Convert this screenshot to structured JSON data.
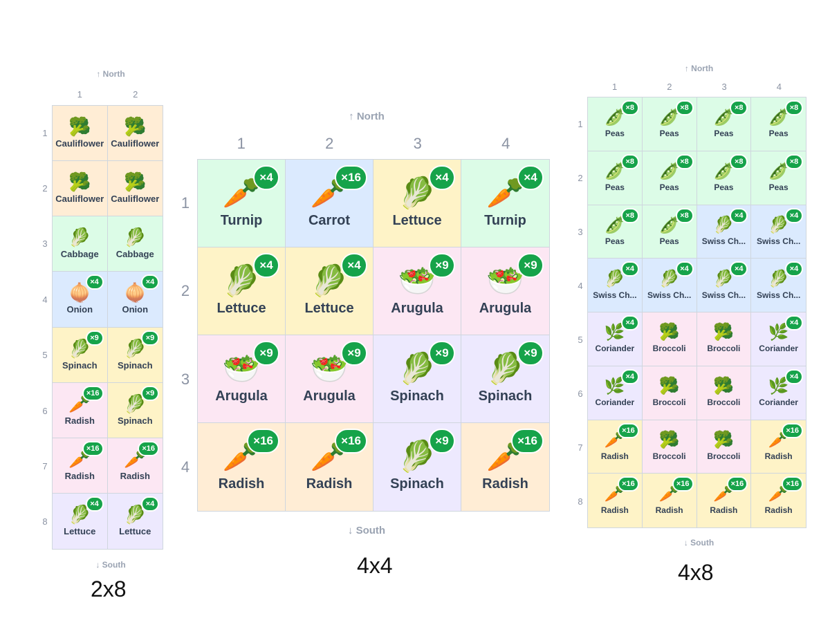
{
  "palette": {
    "green": "#dcfce7",
    "blue": "#dbeafe",
    "yellow": "#fef3c7",
    "pink": "#fce7f3",
    "orange": "#ffedd5",
    "lavender": "#ede9fe",
    "badge": "#16a34a"
  },
  "plans": [
    {
      "id": "a",
      "caption": "2x8",
      "north": "↑ North",
      "south": "↓ South",
      "cols": [
        "1",
        "2"
      ],
      "rows": [
        "1",
        "2",
        "3",
        "4",
        "5",
        "6",
        "7",
        "8"
      ],
      "cells": [
        [
          {
            "plant": "Cauliflower",
            "icon": "🥦",
            "count": "",
            "color": "orange"
          },
          {
            "plant": "Cauliflower",
            "icon": "🥦",
            "count": "",
            "color": "orange"
          }
        ],
        [
          {
            "plant": "Cauliflower",
            "icon": "🥦",
            "count": "",
            "color": "orange"
          },
          {
            "plant": "Cauliflower",
            "icon": "🥦",
            "count": "",
            "color": "orange"
          }
        ],
        [
          {
            "plant": "Cabbage",
            "icon": "🥬",
            "count": "",
            "color": "green"
          },
          {
            "plant": "Cabbage",
            "icon": "🥬",
            "count": "",
            "color": "green"
          }
        ],
        [
          {
            "plant": "Onion",
            "icon": "🧅",
            "count": "×4",
            "color": "blue"
          },
          {
            "plant": "Onion",
            "icon": "🧅",
            "count": "×4",
            "color": "blue"
          }
        ],
        [
          {
            "plant": "Spinach",
            "icon": "🥬",
            "count": "×9",
            "color": "yellow"
          },
          {
            "plant": "Spinach",
            "icon": "🥬",
            "count": "×9",
            "color": "yellow"
          }
        ],
        [
          {
            "plant": "Radish",
            "icon": "🥕",
            "count": "×16",
            "color": "pink"
          },
          {
            "plant": "Spinach",
            "icon": "🥬",
            "count": "×9",
            "color": "yellow"
          }
        ],
        [
          {
            "plant": "Radish",
            "icon": "🥕",
            "count": "×16",
            "color": "pink"
          },
          {
            "plant": "Radish",
            "icon": "🥕",
            "count": "×16",
            "color": "pink"
          }
        ],
        [
          {
            "plant": "Lettuce",
            "icon": "🥬",
            "count": "×4",
            "color": "lavender"
          },
          {
            "plant": "Lettuce",
            "icon": "🥬",
            "count": "×4",
            "color": "lavender"
          }
        ]
      ]
    },
    {
      "id": "b",
      "caption": "4x4",
      "north": "↑ North",
      "south": "↓ South",
      "cols": [
        "1",
        "2",
        "3",
        "4"
      ],
      "rows": [
        "1",
        "2",
        "3",
        "4"
      ],
      "cells": [
        [
          {
            "plant": "Turnip",
            "icon": "🥕",
            "count": "×4",
            "color": "green"
          },
          {
            "plant": "Carrot",
            "icon": "🥕",
            "count": "×16",
            "color": "blue"
          },
          {
            "plant": "Lettuce",
            "icon": "🥬",
            "count": "×4",
            "color": "yellow"
          },
          {
            "plant": "Turnip",
            "icon": "🥕",
            "count": "×4",
            "color": "green"
          }
        ],
        [
          {
            "plant": "Lettuce",
            "icon": "🥬",
            "count": "×4",
            "color": "yellow"
          },
          {
            "plant": "Lettuce",
            "icon": "🥬",
            "count": "×4",
            "color": "yellow"
          },
          {
            "plant": "Arugula",
            "icon": "🥗",
            "count": "×9",
            "color": "pink"
          },
          {
            "plant": "Arugula",
            "icon": "🥗",
            "count": "×9",
            "color": "pink"
          }
        ],
        [
          {
            "plant": "Arugula",
            "icon": "🥗",
            "count": "×9",
            "color": "pink"
          },
          {
            "plant": "Arugula",
            "icon": "🥗",
            "count": "×9",
            "color": "pink"
          },
          {
            "plant": "Spinach",
            "icon": "🥬",
            "count": "×9",
            "color": "lavender"
          },
          {
            "plant": "Spinach",
            "icon": "🥬",
            "count": "×9",
            "color": "lavender"
          }
        ],
        [
          {
            "plant": "Radish",
            "icon": "🥕",
            "count": "×16",
            "color": "orange"
          },
          {
            "plant": "Radish",
            "icon": "🥕",
            "count": "×16",
            "color": "orange"
          },
          {
            "plant": "Spinach",
            "icon": "🥬",
            "count": "×9",
            "color": "lavender"
          },
          {
            "plant": "Radish",
            "icon": "🥕",
            "count": "×16",
            "color": "orange"
          }
        ]
      ]
    },
    {
      "id": "c",
      "caption": "4x8",
      "north": "↑ North",
      "south": "↓ South",
      "cols": [
        "1",
        "2",
        "3",
        "4"
      ],
      "rows": [
        "1",
        "2",
        "3",
        "4",
        "5",
        "6",
        "7",
        "8"
      ],
      "cells": [
        [
          {
            "plant": "Peas",
            "icon": "🫛",
            "count": "×8",
            "color": "green"
          },
          {
            "plant": "Peas",
            "icon": "🫛",
            "count": "×8",
            "color": "green"
          },
          {
            "plant": "Peas",
            "icon": "🫛",
            "count": "×8",
            "color": "green"
          },
          {
            "plant": "Peas",
            "icon": "🫛",
            "count": "×8",
            "color": "green"
          }
        ],
        [
          {
            "plant": "Peas",
            "icon": "🫛",
            "count": "×8",
            "color": "green"
          },
          {
            "plant": "Peas",
            "icon": "🫛",
            "count": "×8",
            "color": "green"
          },
          {
            "plant": "Peas",
            "icon": "🫛",
            "count": "×8",
            "color": "green"
          },
          {
            "plant": "Peas",
            "icon": "🫛",
            "count": "×8",
            "color": "green"
          }
        ],
        [
          {
            "plant": "Peas",
            "icon": "🫛",
            "count": "×8",
            "color": "green"
          },
          {
            "plant": "Peas",
            "icon": "🫛",
            "count": "×8",
            "color": "green"
          },
          {
            "plant": "Swiss Ch...",
            "icon": "🥬",
            "count": "×4",
            "color": "blue"
          },
          {
            "plant": "Swiss Ch...",
            "icon": "🥬",
            "count": "×4",
            "color": "blue"
          }
        ],
        [
          {
            "plant": "Swiss Ch...",
            "icon": "🥬",
            "count": "×4",
            "color": "blue"
          },
          {
            "plant": "Swiss Ch...",
            "icon": "🥬",
            "count": "×4",
            "color": "blue"
          },
          {
            "plant": "Swiss Ch...",
            "icon": "🥬",
            "count": "×4",
            "color": "blue"
          },
          {
            "plant": "Swiss Ch...",
            "icon": "🥬",
            "count": "×4",
            "color": "blue"
          }
        ],
        [
          {
            "plant": "Coriander",
            "icon": "🌿",
            "count": "×4",
            "color": "lavender"
          },
          {
            "plant": "Broccoli",
            "icon": "🥦",
            "count": "",
            "color": "pink"
          },
          {
            "plant": "Broccoli",
            "icon": "🥦",
            "count": "",
            "color": "pink"
          },
          {
            "plant": "Coriander",
            "icon": "🌿",
            "count": "×4",
            "color": "lavender"
          }
        ],
        [
          {
            "plant": "Coriander",
            "icon": "🌿",
            "count": "×4",
            "color": "lavender"
          },
          {
            "plant": "Broccoli",
            "icon": "🥦",
            "count": "",
            "color": "pink"
          },
          {
            "plant": "Broccoli",
            "icon": "🥦",
            "count": "",
            "color": "pink"
          },
          {
            "plant": "Coriander",
            "icon": "🌿",
            "count": "×4",
            "color": "lavender"
          }
        ],
        [
          {
            "plant": "Radish",
            "icon": "🥕",
            "count": "×16",
            "color": "yellow"
          },
          {
            "plant": "Broccoli",
            "icon": "🥦",
            "count": "",
            "color": "pink"
          },
          {
            "plant": "Broccoli",
            "icon": "🥦",
            "count": "",
            "color": "pink"
          },
          {
            "plant": "Radish",
            "icon": "🥕",
            "count": "×16",
            "color": "yellow"
          }
        ],
        [
          {
            "plant": "Radish",
            "icon": "🥕",
            "count": "×16",
            "color": "yellow"
          },
          {
            "plant": "Radish",
            "icon": "🥕",
            "count": "×16",
            "color": "yellow"
          },
          {
            "plant": "Radish",
            "icon": "🥕",
            "count": "×16",
            "color": "yellow"
          },
          {
            "plant": "Radish",
            "icon": "🥕",
            "count": "×16",
            "color": "yellow"
          }
        ]
      ]
    }
  ]
}
